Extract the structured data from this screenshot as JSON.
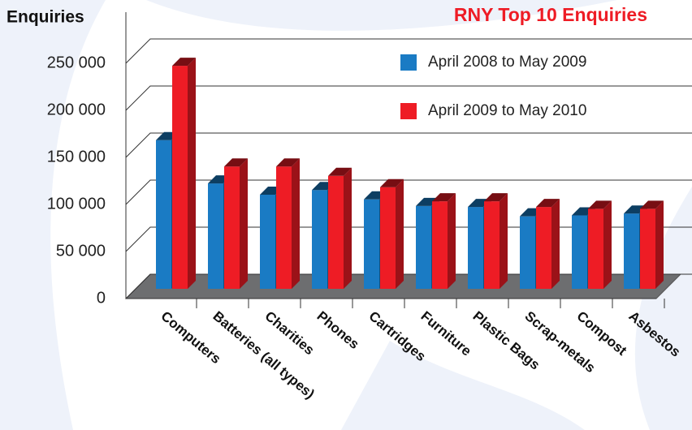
{
  "chart_data": {
    "type": "bar3d",
    "title": "RNY Top 10 Enquiries",
    "ylabel": "Enquiries",
    "categories": [
      "Computers",
      "Batteries (all types)",
      "Charities",
      "Phones",
      "Cartridges",
      "Furniture",
      "Plastic Bags",
      "Scrap-metals",
      "Compost",
      "Asbestos"
    ],
    "series": [
      {
        "name": "April 2008 to May 2009",
        "color": "#1a7bc4",
        "values": [
          158000,
          112000,
          100000,
          105000,
          95000,
          88000,
          87000,
          77000,
          78000,
          80000
        ]
      },
      {
        "name": "April 2009 to May 2010",
        "color": "#ee1c25",
        "values": [
          237000,
          130000,
          130000,
          120000,
          108000,
          93000,
          93000,
          87000,
          85000,
          85000
        ]
      }
    ],
    "ylim": [
      0,
      250000
    ],
    "yticks": [
      0,
      {
        "value": 50000,
        "label": "50 000"
      },
      {
        "value": 100000,
        "label": "100 000"
      },
      {
        "value": 150000,
        "label": "150 000"
      },
      {
        "value": 200000,
        "label": "200 000"
      },
      {
        "value": 250000,
        "label": "250 000"
      }
    ],
    "grid": true,
    "legend": "top-right"
  }
}
